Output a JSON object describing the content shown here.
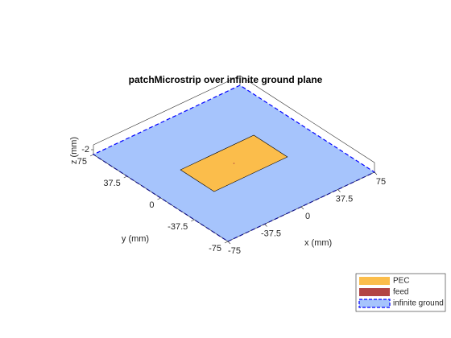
{
  "chart_data": {
    "type": "patch3d",
    "title": "patchMicrostrip over infinite ground plane",
    "xlabel": "x (mm)",
    "ylabel": "y (mm)",
    "zlabel": "z (mm)",
    "xlim": [
      -75,
      75
    ],
    "ylim": [
      -75,
      75
    ],
    "xticks": [
      -75,
      -37.5,
      0,
      37.5,
      75
    ],
    "yticks": [
      -75,
      -37.5,
      0,
      37.5,
      75
    ],
    "zticks": [
      -2
    ],
    "patch_x": [
      -37.5,
      37.5
    ],
    "patch_y": [
      -18.75,
      18.75
    ],
    "series": [
      {
        "name": "PEC",
        "color": "#fbbd4b"
      },
      {
        "name": "feed",
        "color": "#b24444"
      },
      {
        "name": "infinite ground",
        "color": "#a6c4fc",
        "edge": "#0000ff"
      }
    ]
  }
}
